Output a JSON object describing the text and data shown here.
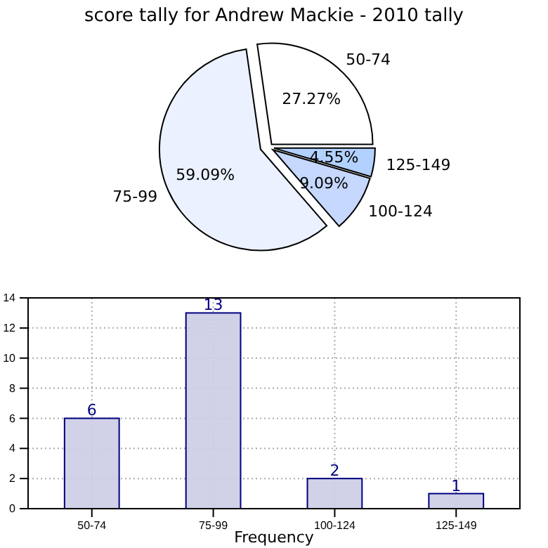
{
  "chart_data": [
    {
      "type": "pie",
      "title": "score tally for Andrew Mackie - 2010 tally",
      "categories": [
        "50-74",
        "75-99",
        "100-124",
        "125-149"
      ],
      "values": [
        27.27,
        59.09,
        9.09,
        4.55
      ],
      "colors": [
        "#ffffff",
        "#ebf1fe",
        "#c6d8fe",
        "#b3d1fe"
      ],
      "value_labels": [
        "27.27%",
        "59.09%",
        "9.09%",
        "4.55%"
      ]
    },
    {
      "type": "bar",
      "xlabel": "Frequency",
      "categories": [
        "50-74",
        "75-99",
        "100-124",
        "125-149"
      ],
      "values": [
        6,
        13,
        2,
        1
      ],
      "color": "#cccce4",
      "ylim": [
        0,
        14
      ],
      "yticks": [
        0,
        2,
        4,
        6,
        8,
        10,
        12,
        14
      ],
      "grid": true,
      "data_labels": true
    }
  ]
}
